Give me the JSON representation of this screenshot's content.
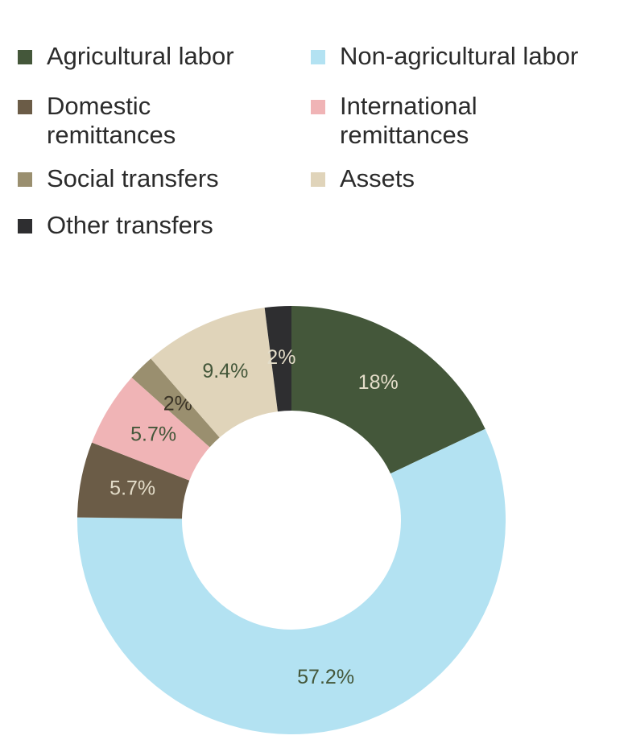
{
  "chart_data": {
    "type": "pie",
    "variant": "donut",
    "legend_position": "top",
    "categories": [
      "Agricultural labor",
      "Non-agricultural labor",
      "Domestic remittances",
      "International remittances",
      "Social transfers",
      "Assets",
      "Other transfers"
    ],
    "values": [
      18,
      57.2,
      5.7,
      5.7,
      2,
      9.4,
      2
    ],
    "labels": [
      "18%",
      "57.2%",
      "5.7%",
      "5.7%",
      "2%",
      "9.4%",
      "2%"
    ],
    "colors": [
      "#44573a",
      "#b3e2f2",
      "#6b5c47",
      "#f0b4b6",
      "#9a8f6f",
      "#e0d4ba",
      "#2e2e30"
    ],
    "label_colors": [
      "#e3dcc8",
      "#44573a",
      "#e3dcc8",
      "#44573a",
      "#3a3326",
      "#44573a",
      "#e3dcc8"
    ]
  },
  "legend": {
    "items": [
      {
        "label": "Agricultural labor"
      },
      {
        "label": "Non-agricultural labor"
      },
      {
        "label": "Domestic\nremittances"
      },
      {
        "label": "International\nremittances"
      },
      {
        "label": "Social transfers"
      },
      {
        "label": "Assets"
      },
      {
        "label": "Other transfers"
      }
    ]
  }
}
